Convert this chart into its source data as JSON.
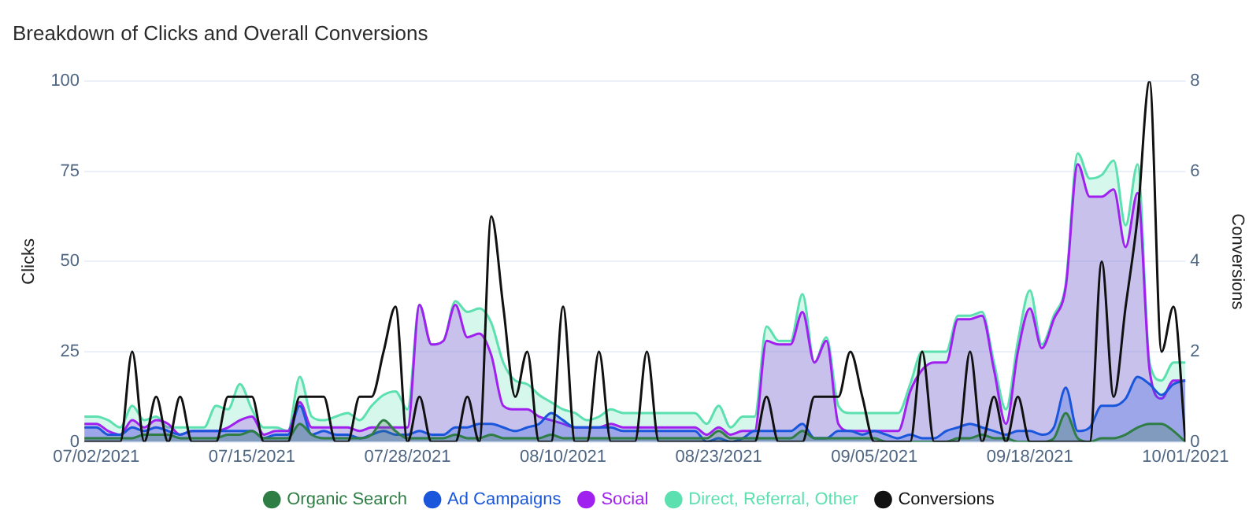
{
  "chart_data": {
    "type": "area",
    "title": "Breakdown of Clicks and Overall Conversions",
    "ylabel": "Clicks",
    "y2label": "Conversions",
    "x": [
      "2021-07-01",
      "2021-07-02",
      "2021-07-03",
      "2021-07-04",
      "2021-07-05",
      "2021-07-06",
      "2021-07-07",
      "2021-07-08",
      "2021-07-09",
      "2021-07-10",
      "2021-07-11",
      "2021-07-12",
      "2021-07-13",
      "2021-07-14",
      "2021-07-15",
      "2021-07-16",
      "2021-07-17",
      "2021-07-18",
      "2021-07-19",
      "2021-07-20",
      "2021-07-21",
      "2021-07-22",
      "2021-07-23",
      "2021-07-24",
      "2021-07-25",
      "2021-07-26",
      "2021-07-27",
      "2021-07-28",
      "2021-07-29",
      "2021-07-30",
      "2021-07-31",
      "2021-08-01",
      "2021-08-02",
      "2021-08-03",
      "2021-08-04",
      "2021-08-05",
      "2021-08-06",
      "2021-08-07",
      "2021-08-08",
      "2021-08-09",
      "2021-08-10",
      "2021-08-11",
      "2021-08-12",
      "2021-08-13",
      "2021-08-14",
      "2021-08-15",
      "2021-08-16",
      "2021-08-17",
      "2021-08-18",
      "2021-08-19",
      "2021-08-20",
      "2021-08-21",
      "2021-08-22",
      "2021-08-23",
      "2021-08-24",
      "2021-08-25",
      "2021-08-26",
      "2021-08-27",
      "2021-08-28",
      "2021-08-29",
      "2021-08-30",
      "2021-08-31",
      "2021-09-01",
      "2021-09-02",
      "2021-09-03",
      "2021-09-04",
      "2021-09-05",
      "2021-09-06",
      "2021-09-07",
      "2021-09-08",
      "2021-09-09",
      "2021-09-10",
      "2021-09-11",
      "2021-09-12",
      "2021-09-13",
      "2021-09-14",
      "2021-09-15",
      "2021-09-16",
      "2021-09-17",
      "2021-09-18",
      "2021-09-19",
      "2021-09-20",
      "2021-09-21",
      "2021-09-22",
      "2021-09-23",
      "2021-09-24",
      "2021-09-25",
      "2021-09-26",
      "2021-09-27",
      "2021-09-28",
      "2021-09-29",
      "2021-09-30",
      "2021-10-01"
    ],
    "series": [
      {
        "name": "Organic Search",
        "color": "#2e7d44",
        "values": [
          1,
          1,
          1,
          1,
          1,
          2,
          2,
          2,
          1,
          1,
          1,
          1,
          2,
          2,
          3,
          1,
          1,
          1,
          5,
          2,
          1,
          1,
          1,
          1,
          2,
          6,
          3,
          1,
          1,
          1,
          1,
          2,
          1,
          1,
          2,
          1,
          1,
          1,
          1,
          2,
          1,
          1,
          1,
          1,
          1,
          1,
          1,
          1,
          1,
          1,
          1,
          1,
          1,
          3,
          1,
          1,
          1,
          1,
          1,
          1,
          3,
          1,
          1,
          1,
          1,
          1,
          1,
          0,
          0,
          0,
          0,
          0,
          0,
          1,
          1,
          2,
          1,
          1,
          0,
          0,
          0,
          1,
          8,
          1,
          0,
          1,
          1,
          2,
          4,
          5,
          5,
          3,
          0
        ]
      },
      {
        "name": "Ad Campaigns",
        "color": "#1a56db",
        "values": [
          4,
          4,
          2,
          2,
          4,
          3,
          4,
          3,
          2,
          3,
          3,
          3,
          3,
          3,
          3,
          1,
          2,
          2,
          10,
          2,
          3,
          2,
          2,
          1,
          2,
          3,
          2,
          2,
          3,
          2,
          2,
          4,
          4,
          5,
          5,
          4,
          3,
          4,
          5,
          8,
          6,
          4,
          4,
          4,
          4,
          3,
          3,
          3,
          3,
          3,
          3,
          3,
          0,
          1,
          0,
          1,
          3,
          3,
          3,
          3,
          5,
          1,
          1,
          3,
          3,
          2,
          3,
          2,
          1,
          2,
          1,
          1,
          3,
          4,
          5,
          4,
          3,
          2,
          3,
          3,
          2,
          4,
          15,
          3,
          4,
          10,
          10,
          12,
          18,
          16,
          13,
          16,
          17
        ]
      },
      {
        "name": "Social",
        "color": "#a020f0",
        "values": [
          5,
          5,
          3,
          2,
          6,
          4,
          6,
          5,
          2,
          3,
          3,
          3,
          4,
          6,
          7,
          2,
          3,
          3,
          11,
          4,
          4,
          4,
          4,
          3,
          4,
          4,
          4,
          4,
          38,
          27,
          28,
          38,
          29,
          30,
          24,
          10,
          9,
          9,
          7,
          6,
          5,
          4,
          4,
          4,
          5,
          4,
          4,
          4,
          4,
          4,
          4,
          4,
          2,
          4,
          2,
          3,
          3,
          28,
          27,
          27,
          36,
          22,
          28,
          5,
          3,
          3,
          3,
          3,
          3,
          14,
          20,
          22,
          22,
          34,
          34,
          35,
          20,
          5,
          25,
          37,
          26,
          34,
          43,
          77,
          68,
          68,
          70,
          54,
          69,
          20,
          12,
          17,
          17
        ]
      },
      {
        "name": "Direct, Referral, Other",
        "color": "#5ce0b0",
        "values": [
          7,
          7,
          6,
          4,
          10,
          6,
          7,
          4,
          4,
          4,
          4,
          10,
          9,
          16,
          9,
          4,
          4,
          3,
          18,
          7,
          6,
          7,
          8,
          6,
          10,
          13,
          14,
          9,
          38,
          27,
          28,
          39,
          36,
          37,
          33,
          22,
          17,
          16,
          13,
          11,
          9,
          8,
          6,
          7,
          9,
          8,
          8,
          8,
          8,
          8,
          8,
          8,
          5,
          10,
          4,
          7,
          7,
          32,
          28,
          28,
          41,
          22,
          29,
          10,
          8,
          8,
          8,
          8,
          8,
          16,
          25,
          25,
          25,
          35,
          35,
          36,
          22,
          9,
          28,
          42,
          27,
          35,
          44,
          80,
          73,
          74,
          78,
          60,
          77,
          22,
          17,
          22,
          22
        ]
      },
      {
        "name": "Conversions",
        "color": "#111111",
        "type": "line",
        "axis": "y2",
        "values": [
          0,
          0,
          0,
          0,
          2,
          0,
          1,
          0,
          1,
          0,
          0,
          0,
          1,
          1,
          1,
          0,
          0,
          0,
          1,
          1,
          1,
          0,
          0,
          1,
          1,
          2,
          3,
          0,
          1,
          0,
          0,
          0,
          1,
          0,
          5,
          3,
          1,
          2,
          0,
          0,
          3,
          0,
          0,
          2,
          0,
          0,
          0,
          2,
          0,
          0,
          0,
          0,
          0,
          0,
          0,
          0,
          0,
          1,
          0,
          0,
          0,
          1,
          1,
          1,
          2,
          1,
          0,
          0,
          0,
          0,
          2,
          0,
          0,
          0,
          2,
          0,
          1,
          0,
          1,
          0,
          0,
          0,
          0,
          0,
          0,
          4,
          1,
          3,
          5,
          8,
          2,
          3,
          0
        ]
      }
    ],
    "xlim": [
      "2021-07-01",
      "2021-10-01"
    ],
    "xticks": [
      {
        "value": "2021-07-02",
        "label": "07/02/2021"
      },
      {
        "value": "2021-07-15",
        "label": "07/15/2021"
      },
      {
        "value": "2021-07-28",
        "label": "07/28/2021"
      },
      {
        "value": "2021-08-10",
        "label": "08/10/2021"
      },
      {
        "value": "2021-08-23",
        "label": "08/23/2021"
      },
      {
        "value": "2021-09-05",
        "label": "09/05/2021"
      },
      {
        "value": "2021-09-18",
        "label": "09/18/2021"
      },
      {
        "value": "2021-10-01",
        "label": "10/01/2021"
      }
    ],
    "ylim": [
      0,
      100
    ],
    "yticks": [
      0,
      25,
      50,
      75,
      100
    ],
    "y2lim": [
      0,
      8
    ],
    "y2ticks": [
      0,
      2,
      4,
      6,
      8
    ],
    "grid": "y",
    "legend": "bottom",
    "marker": "none",
    "line_style": "solid"
  }
}
